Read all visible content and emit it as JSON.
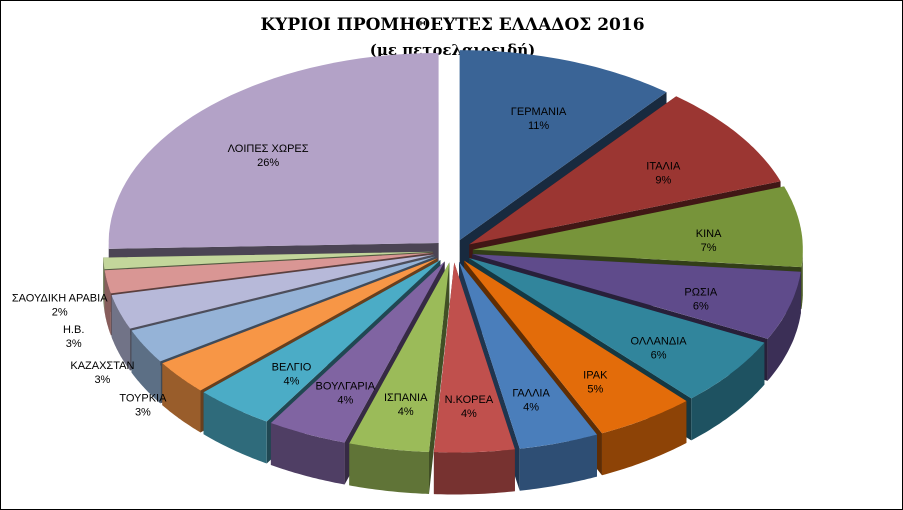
{
  "title": "ΚΥΡΙΟΙ ΠΡΟΜΗΘΕΥΤΕΣ ΕΛΛΑΔΟΣ 2016",
  "subtitle": "(με πετρελαιοειδή)",
  "chart_data": {
    "type": "pie",
    "style": "3d-exploded",
    "legend": "none",
    "unit": "%",
    "slices": [
      {
        "label": "ΓΕΡΜΑΝΙΑ",
        "value": 11,
        "value_label": "11%",
        "color": "#3a6496"
      },
      {
        "label": "ΙΤΑΛΙΑ",
        "value": 9,
        "value_label": "9%",
        "color": "#9b3632"
      },
      {
        "label": "ΚΙΝΑ",
        "value": 7,
        "value_label": "7%",
        "color": "#77943a"
      },
      {
        "label": "ΡΩΣΙΑ",
        "value": 6,
        "value_label": "6%",
        "color": "#5f4b8b"
      },
      {
        "label": "ΟΛΛΑΝΔΙΑ",
        "value": 6,
        "value_label": "6%",
        "color": "#31859c"
      },
      {
        "label": "ΙΡΑΚ",
        "value": 5,
        "value_label": "5%",
        "color": "#e36c0a"
      },
      {
        "label": "ΓΑΛΛΙΑ",
        "value": 4,
        "value_label": "4%",
        "color": "#4a7ebb"
      },
      {
        "label": "Ν.ΚΟΡΕΑ",
        "value": 4,
        "value_label": "4%",
        "color": "#c0504d"
      },
      {
        "label": "ΙΣΠΑΝΙΑ",
        "value": 4,
        "value_label": "4%",
        "color": "#9bbb59"
      },
      {
        "label": "ΒΟΥΛΓΑΡΙΑ",
        "value": 4,
        "value_label": "4%",
        "color": "#8064a2"
      },
      {
        "label": "ΒΕΛΓΙΟ",
        "value": 4,
        "value_label": "4%",
        "color": "#4bacc6"
      },
      {
        "label": "ΤΟΥΡΚΙΑ",
        "value": 3,
        "value_label": "3%",
        "color": "#f79646"
      },
      {
        "label": "ΚΑΖΑΧΣΤΑΝ",
        "value": 3,
        "value_label": "3%",
        "color": "#95b3d7"
      },
      {
        "label": "Η.Β.",
        "value": 3,
        "value_label": "3%",
        "color": "#b7b9d9"
      },
      {
        "label": "ΣΑΟΥΔΙΚΗ ΑΡΑΒΙΑ",
        "value": 2,
        "value_label": "2%",
        "color": "#d99694"
      },
      {
        "label": "",
        "value": 1,
        "value_label": "",
        "color": "#c3d69b"
      },
      {
        "label": "ΛΟΙΠΕΣ ΧΩΡΕΣ",
        "value": 26,
        "value_label": "26%",
        "color": "#b3a2c7"
      }
    ]
  }
}
